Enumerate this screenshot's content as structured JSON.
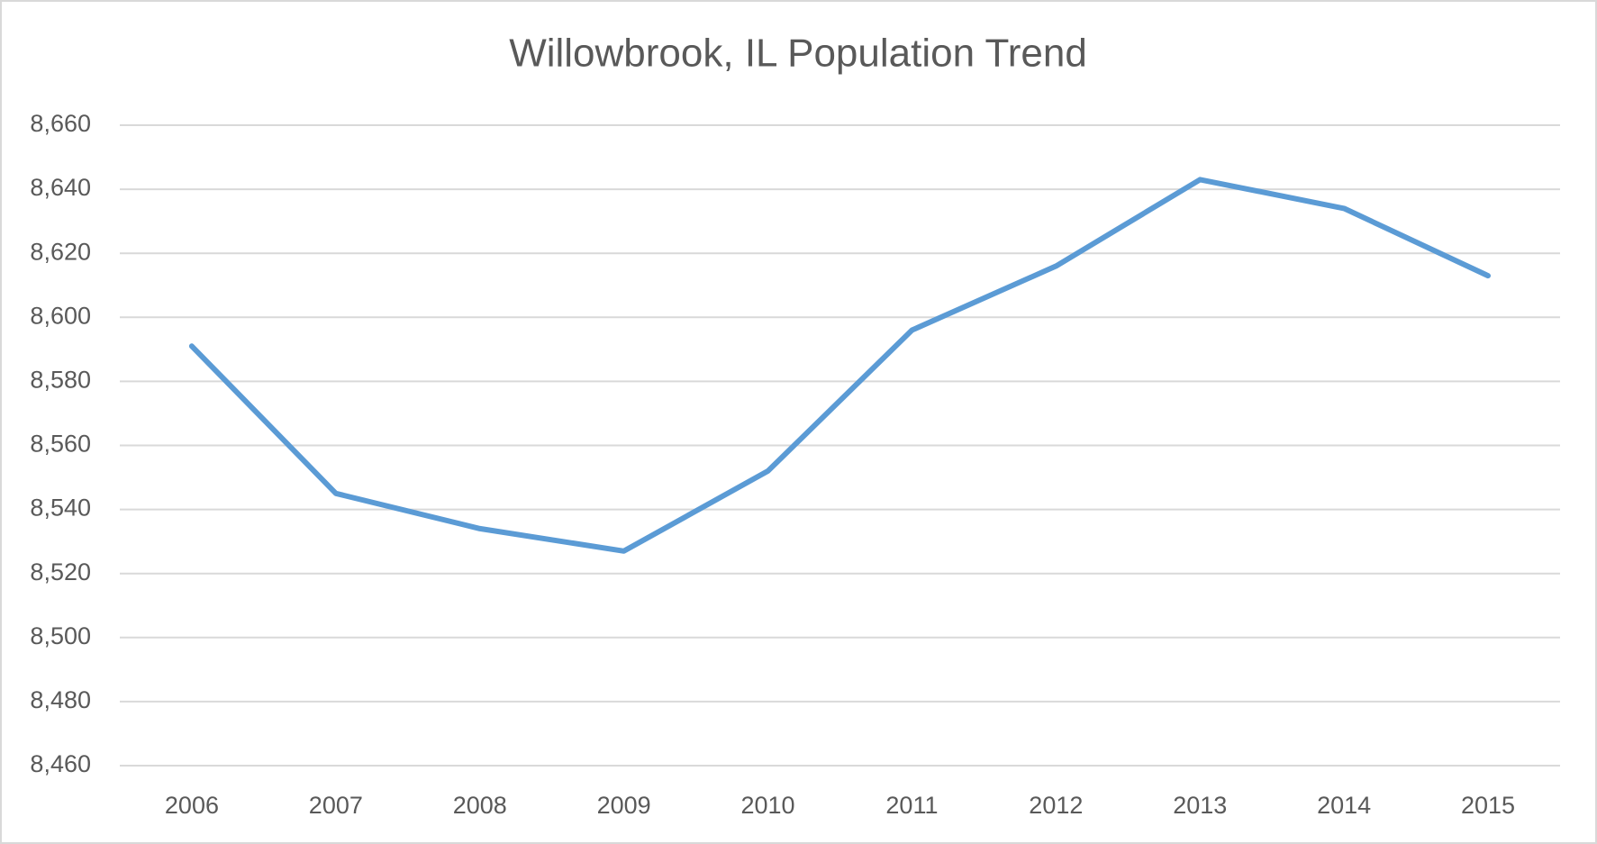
{
  "chart_data": {
    "type": "line",
    "title": "Willowbrook, IL Population Trend",
    "categories": [
      "2006",
      "2007",
      "2008",
      "2009",
      "2010",
      "2011",
      "2012",
      "2013",
      "2014",
      "2015"
    ],
    "values": [
      8591,
      8545,
      8534,
      8527,
      8552,
      8596,
      8616,
      8643,
      8634,
      8613
    ],
    "color": "#5b9bd5",
    "ylim": [
      8460,
      8660
    ],
    "yticks": [
      {
        "value": 8460,
        "label": "8,460"
      },
      {
        "value": 8480,
        "label": "8,480"
      },
      {
        "value": 8500,
        "label": "8,500"
      },
      {
        "value": 8520,
        "label": "8,520"
      },
      {
        "value": 8540,
        "label": "8,540"
      },
      {
        "value": 8560,
        "label": "8,560"
      },
      {
        "value": 8580,
        "label": "8,580"
      },
      {
        "value": 8600,
        "label": "8,600"
      },
      {
        "value": 8620,
        "label": "8,620"
      },
      {
        "value": 8640,
        "label": "8,640"
      },
      {
        "value": 8660,
        "label": "8,660"
      }
    ],
    "grid": true
  }
}
